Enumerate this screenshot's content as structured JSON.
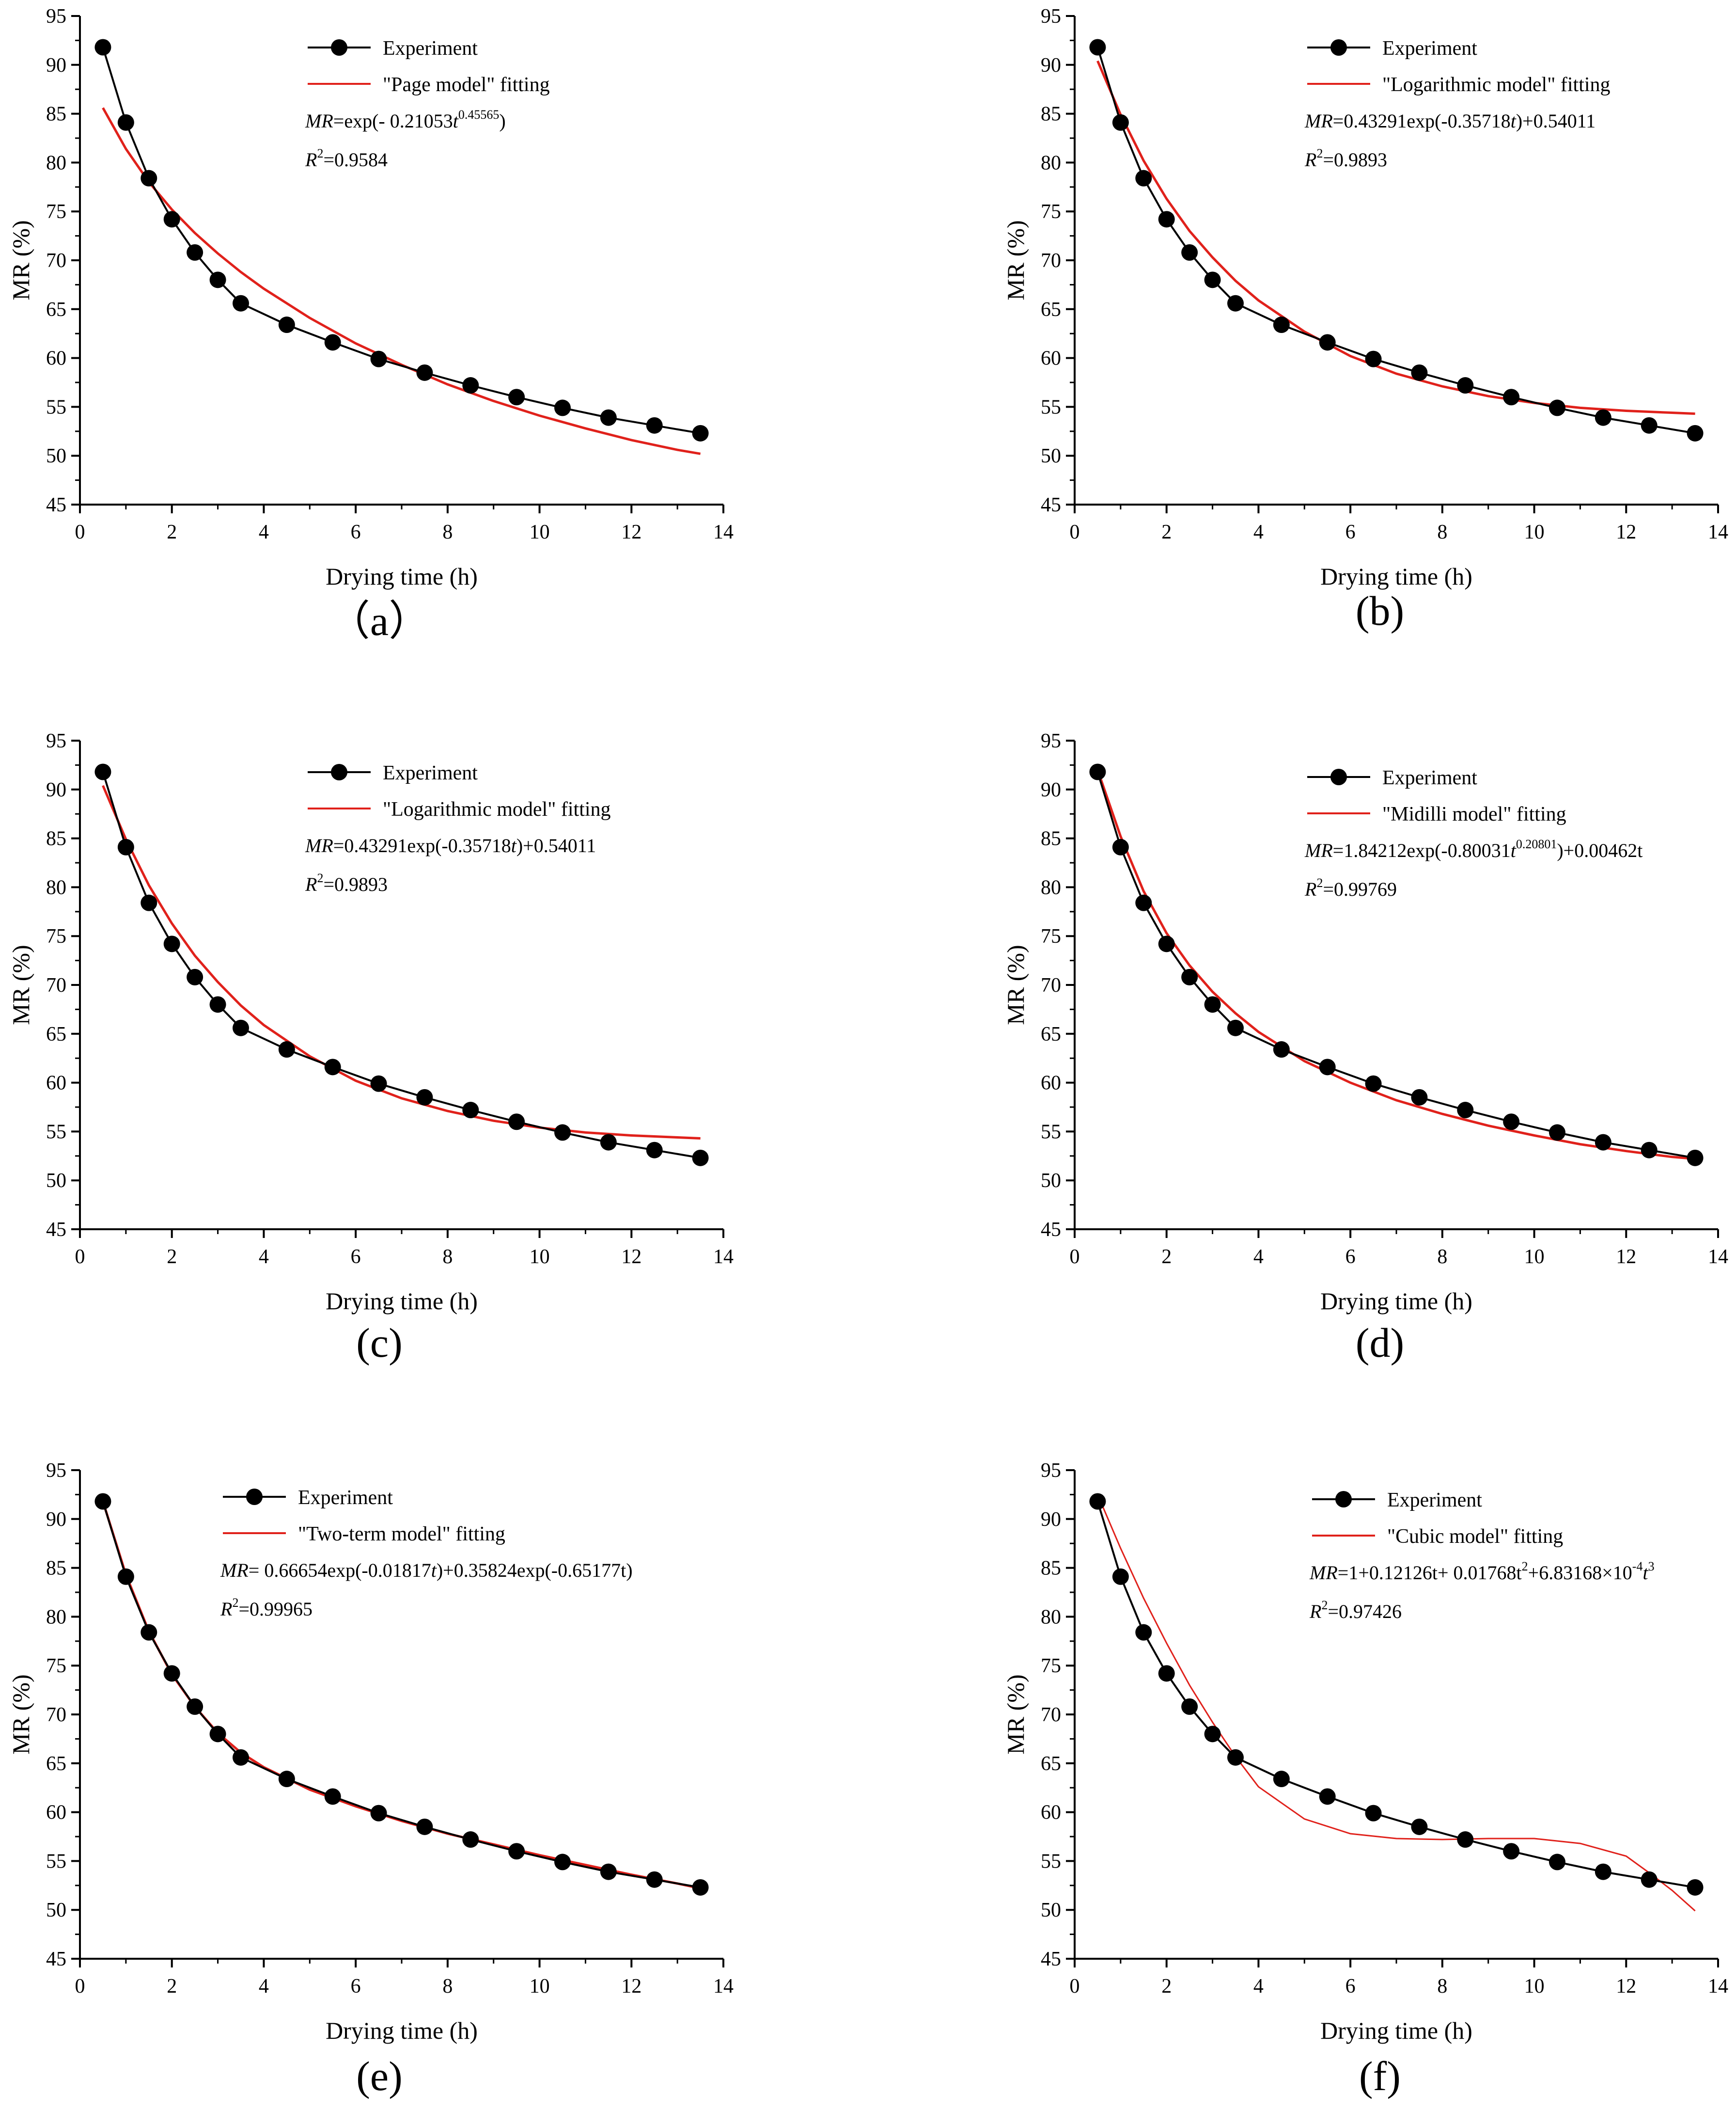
{
  "colors": {
    "experiment": "#000000",
    "fit": "#e0211b",
    "axis": "#000000"
  },
  "axes_common": {
    "xlabel": "Drying time (h)",
    "ylabel": "MR (%)",
    "xlim": [
      0,
      14
    ],
    "ylim": [
      45,
      95
    ],
    "xticks": [
      "0",
      "2",
      "4",
      "6",
      "8",
      "10",
      "12",
      "14"
    ],
    "yticks": [
      "45",
      "50",
      "55",
      "60",
      "65",
      "70",
      "75",
      "80",
      "85",
      "90",
      "95"
    ]
  },
  "chart_data": [
    {
      "type": "line",
      "panel_label": "（a）",
      "xlabel": "Drying time (h)",
      "ylabel": "MR (%)",
      "xlim": [
        0,
        14
      ],
      "ylim": [
        45,
        95
      ],
      "legend_position": "top",
      "series": [
        {
          "name": "Experiment",
          "kind": "markers+line",
          "x": [
            0.5,
            1,
            1.5,
            2,
            2.5,
            3,
            3.5,
            4.5,
            5.5,
            6.5,
            7.5,
            8.5,
            9.5,
            10.5,
            11.5,
            12.5,
            13.5
          ],
          "y": [
            91.8,
            84.1,
            78.4,
            74.2,
            70.8,
            68.0,
            65.6,
            63.4,
            61.6,
            59.9,
            58.5,
            57.2,
            56.0,
            54.9,
            53.9,
            53.1,
            52.3
          ]
        },
        {
          "name": "\"Page model\" fitting",
          "kind": "line",
          "x": [
            0.5,
            1,
            1.5,
            2,
            2.5,
            3,
            3.5,
            4,
            5,
            6,
            7,
            8,
            9,
            10,
            11,
            12,
            13,
            13.5
          ],
          "y": [
            85.6,
            81.4,
            78.0,
            75.2,
            72.8,
            70.7,
            68.8,
            67.1,
            64.1,
            61.5,
            59.3,
            57.3,
            55.6,
            54.1,
            52.8,
            51.6,
            50.6,
            50.2
          ]
        }
      ],
      "equation": {
        "prefix_italic": "MR",
        "text": "=exp(- 0.21053",
        "var": "t",
        "sup": "0.45565",
        "suffix": ")"
      },
      "r2": "=0.9584"
    },
    {
      "type": "line",
      "panel_label": "(b)",
      "xlabel": "Drying time (h)",
      "ylabel": "MR (%)",
      "xlim": [
        0,
        14
      ],
      "ylim": [
        45,
        95
      ],
      "legend_position": "top",
      "series": [
        {
          "name": "Experiment",
          "kind": "markers+line",
          "x": [
            0.5,
            1,
            1.5,
            2,
            2.5,
            3,
            3.5,
            4.5,
            5.5,
            6.5,
            7.5,
            8.5,
            9.5,
            10.5,
            11.5,
            12.5,
            13.5
          ],
          "y": [
            91.8,
            84.1,
            78.4,
            74.2,
            70.8,
            68.0,
            65.6,
            63.4,
            61.6,
            59.9,
            58.5,
            57.2,
            56.0,
            54.9,
            53.9,
            53.1,
            52.3
          ]
        },
        {
          "name": "\"Logarithmic model\" fitting",
          "kind": "line",
          "x": [
            0.5,
            1,
            1.5,
            2,
            2.5,
            3,
            3.5,
            4,
            5,
            6,
            7,
            8,
            9,
            10,
            11,
            12,
            13,
            13.5
          ],
          "y": [
            90.4,
            84.9,
            80.2,
            76.3,
            73.0,
            70.3,
            67.9,
            65.9,
            62.7,
            60.2,
            58.4,
            57.1,
            56.1,
            55.4,
            54.9,
            54.6,
            54.4,
            54.3
          ]
        }
      ],
      "equation": {
        "prefix_italic": "MR",
        "text": "=0.43291exp(-0.35718",
        "var": "t",
        "sup": "",
        "suffix": ")+0.54011"
      },
      "r2": "=0.9893"
    },
    {
      "type": "line",
      "panel_label": "(c)",
      "xlabel": "Drying time (h)",
      "ylabel": "MR (%)",
      "xlim": [
        0,
        14
      ],
      "ylim": [
        45,
        95
      ],
      "legend_position": "top",
      "series": [
        {
          "name": "Experiment",
          "kind": "markers+line",
          "x": [
            0.5,
            1,
            1.5,
            2,
            2.5,
            3,
            3.5,
            4.5,
            5.5,
            6.5,
            7.5,
            8.5,
            9.5,
            10.5,
            11.5,
            12.5,
            13.5
          ],
          "y": [
            91.8,
            84.1,
            78.4,
            74.2,
            70.8,
            68.0,
            65.6,
            63.4,
            61.6,
            59.9,
            58.5,
            57.2,
            56.0,
            54.9,
            53.9,
            53.1,
            52.3
          ]
        },
        {
          "name": "\"Logarithmic model\" fitting",
          "kind": "line",
          "x": [
            0.5,
            1,
            1.5,
            2,
            2.5,
            3,
            3.5,
            4,
            5,
            6,
            7,
            8,
            9,
            10,
            11,
            12,
            13,
            13.5
          ],
          "y": [
            90.4,
            84.9,
            80.2,
            76.3,
            73.0,
            70.3,
            67.9,
            65.9,
            62.7,
            60.2,
            58.4,
            57.1,
            56.1,
            55.4,
            54.9,
            54.6,
            54.4,
            54.3
          ]
        }
      ],
      "equation": {
        "prefix_italic": "MR",
        "text": "=0.43291exp(-0.35718",
        "var": "t",
        "sup": "",
        "suffix": ")+0.54011"
      },
      "r2": "=0.9893"
    },
    {
      "type": "line",
      "panel_label": "(d)",
      "xlabel": "Drying time (h)",
      "ylabel": "MR (%)",
      "xlim": [
        0,
        14
      ],
      "ylim": [
        45,
        95
      ],
      "legend_position": "top",
      "series": [
        {
          "name": "Experiment",
          "kind": "markers+line",
          "x": [
            0.5,
            1,
            1.5,
            2,
            2.5,
            3,
            3.5,
            4.5,
            5.5,
            6.5,
            7.5,
            8.5,
            9.5,
            10.5,
            11.5,
            12.5,
            13.5
          ],
          "y": [
            91.8,
            84.1,
            78.4,
            74.2,
            70.8,
            68.0,
            65.6,
            63.4,
            61.6,
            59.9,
            58.5,
            57.2,
            56.0,
            54.9,
            53.9,
            53.1,
            52.3
          ]
        },
        {
          "name": "\"Midilli model\" fitting",
          "kind": "line",
          "x": [
            0.5,
            1,
            1.5,
            2,
            2.5,
            3,
            3.5,
            4,
            5,
            6,
            7,
            8,
            9,
            10,
            11,
            12,
            13,
            13.5
          ],
          "y": [
            92.0,
            85.2,
            79.6,
            75.3,
            72.0,
            69.3,
            67.1,
            65.2,
            62.2,
            60.0,
            58.2,
            56.8,
            55.6,
            54.6,
            53.7,
            53.0,
            52.4,
            52.2
          ]
        }
      ],
      "equation": {
        "prefix_italic": "MR",
        "text": "=1.84212exp(-0.80031",
        "var": "t",
        "sup": "0.20801",
        "suffix": ")+0.00462t"
      },
      "r2": "=0.99769"
    },
    {
      "type": "line",
      "panel_label": "(e)",
      "xlabel": "Drying time (h)",
      "ylabel": "MR (%)",
      "xlim": [
        0,
        14
      ],
      "ylim": [
        45,
        95
      ],
      "legend_position": "top",
      "series": [
        {
          "name": "Experiment",
          "kind": "markers+line",
          "x": [
            0.5,
            1,
            1.5,
            2,
            2.5,
            3,
            3.5,
            4.5,
            5.5,
            6.5,
            7.5,
            8.5,
            9.5,
            10.5,
            11.5,
            12.5,
            13.5
          ],
          "y": [
            91.8,
            84.1,
            78.4,
            74.2,
            70.8,
            68.0,
            65.6,
            63.4,
            61.6,
            59.9,
            58.5,
            57.2,
            56.0,
            54.9,
            53.9,
            53.1,
            52.3
          ]
        },
        {
          "name": "\"Two-term model\" fitting",
          "kind": "line",
          "x": [
            0.5,
            1,
            1.5,
            2,
            2.5,
            3,
            3.5,
            4,
            5,
            6,
            7,
            8,
            9,
            10,
            11,
            12,
            13,
            13.5
          ],
          "y": [
            91.8,
            84.3,
            78.5,
            74.1,
            70.8,
            68.1,
            66.1,
            64.6,
            62.3,
            60.6,
            59.1,
            57.8,
            56.7,
            55.6,
            54.6,
            53.6,
            52.7,
            52.2
          ]
        }
      ],
      "equation": {
        "prefix_italic": "MR",
        "text": "= 0.66654exp(-0.01817",
        "var": "t",
        "sup": "",
        "suffix": ")+0.35824exp(-0.65177t)"
      },
      "r2": "=0.99965"
    },
    {
      "type": "line",
      "panel_label": "(f)",
      "xlabel": "Drying time (h)",
      "ylabel": "MR (%)",
      "xlim": [
        0,
        14
      ],
      "ylim": [
        45,
        95
      ],
      "legend_position": "top",
      "series": [
        {
          "name": "Experiment",
          "kind": "markers+line",
          "x": [
            0.5,
            1,
            1.5,
            2,
            2.5,
            3,
            3.5,
            4.5,
            5.5,
            6.5,
            7.5,
            8.5,
            9.5,
            10.5,
            11.5,
            12.5,
            13.5
          ],
          "y": [
            91.8,
            84.1,
            78.4,
            74.2,
            70.8,
            68.0,
            65.6,
            63.4,
            61.6,
            59.9,
            58.5,
            57.2,
            56.0,
            54.9,
            53.9,
            53.1,
            52.3
          ]
        },
        {
          "name": "\"Cubic model\" fitting",
          "kind": "line",
          "x": [
            0.5,
            1,
            1.5,
            2,
            2.5,
            3,
            3.5,
            4,
            5,
            6,
            7,
            8,
            9,
            10,
            11,
            12,
            12.5,
            13,
            13.5
          ],
          "y": [
            92.5,
            87.0,
            81.9,
            77.3,
            73.0,
            69.2,
            65.7,
            62.6,
            59.3,
            57.8,
            57.3,
            57.2,
            57.3,
            57.3,
            56.8,
            55.5,
            53.8,
            52.0,
            49.9
          ]
        }
      ],
      "equation": {
        "prefix_italic": "MR",
        "text": "=1+0.12126t+ 0.01768t",
        "var": "",
        "sup": "2",
        "suffix": "+6.83168×10",
        "sup2": "-4",
        "suffix2": "t",
        "sup3": "3"
      },
      "r2": "=0.97426"
    }
  ]
}
